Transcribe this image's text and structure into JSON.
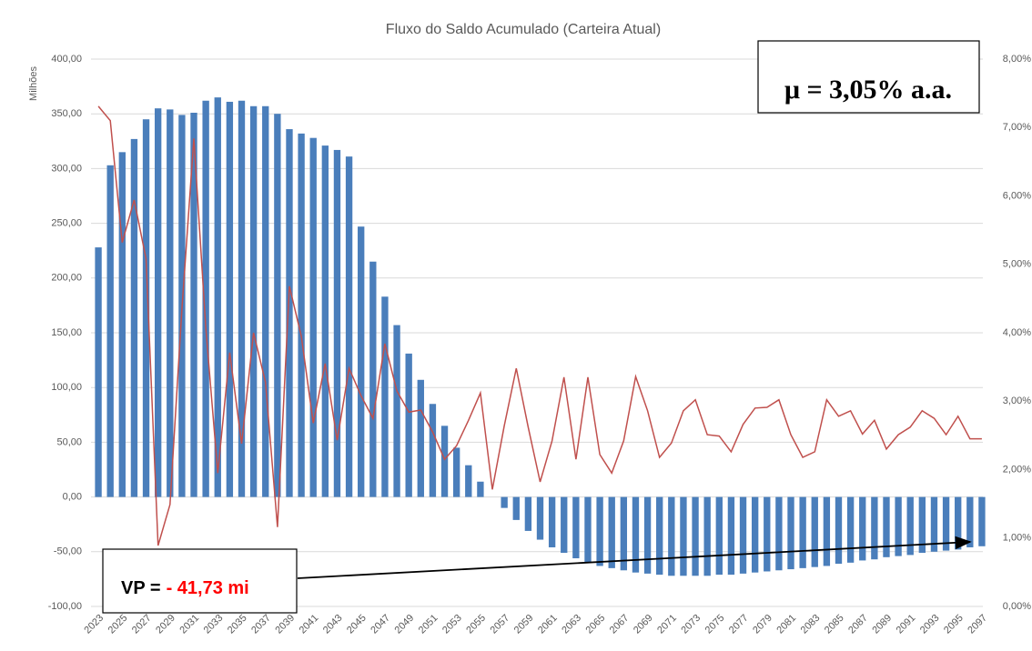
{
  "chart_data": {
    "type": "bar_line",
    "title": "Fluxo do Saldo Acumulado (Carteira Atual)",
    "y_label": "Milhões",
    "annotations": [
      "μ = 3,05% a.a.",
      "VP =",
      "- 41,73 mi"
    ],
    "categories": [
      "2023",
      null,
      "2025",
      null,
      "2027",
      null,
      "2029",
      null,
      "2031",
      null,
      "2033",
      null,
      "2035",
      null,
      "2037",
      null,
      "2039",
      null,
      "2041",
      null,
      "2043",
      null,
      "2045",
      null,
      "2047",
      null,
      "2049",
      null,
      "2051",
      null,
      "2053",
      null,
      "2055",
      null,
      "2057",
      null,
      "2059",
      null,
      "2061",
      null,
      "2063",
      null,
      "2065",
      null,
      "2067",
      null,
      "2069",
      null,
      "2071",
      null,
      "2073",
      null,
      "2075",
      null,
      "2077",
      null,
      "2079",
      null,
      "2081",
      null,
      "2083",
      null,
      "2085",
      null,
      "2087",
      null,
      "2089",
      null,
      "2091",
      null,
      "2093",
      null,
      "2095",
      null,
      "2097"
    ],
    "series": [
      {
        "type": "bar",
        "color": "#4a7ebb",
        "values": [
          228,
          303,
          315,
          327,
          345,
          355,
          354,
          349,
          351,
          362,
          365,
          361,
          362,
          357,
          357,
          350,
          336,
          332,
          328,
          321,
          317,
          311,
          247,
          215,
          183,
          157,
          131,
          107,
          85,
          65,
          45,
          29,
          14,
          0,
          -10,
          -21,
          -31,
          -39,
          -46,
          -51,
          -56,
          -60,
          -63,
          -65,
          -67,
          -69,
          -70,
          -71,
          -72,
          -72,
          -72,
          -72,
          -71,
          -71,
          -70,
          -69,
          -68,
          -67,
          -66,
          -65,
          -64,
          -63,
          -61,
          -60,
          -58,
          -57,
          -55,
          -54,
          -53,
          -51,
          -50,
          -49,
          -48,
          -46,
          -45
        ]
      },
      {
        "type": "line",
        "axis": "y2",
        "color": "#c0504d",
        "values": [
          7.31,
          7.1,
          5.32,
          5.94,
          5.08,
          0.89,
          1.49,
          4.35,
          6.84,
          4.08,
          1.95,
          3.71,
          2.38,
          4.0,
          3.28,
          1.16,
          4.68,
          3.95,
          2.68,
          3.55,
          2.43,
          3.48,
          3.08,
          2.75,
          3.84,
          3.15,
          2.84,
          2.87,
          2.55,
          2.15,
          2.35,
          2.72,
          3.12,
          1.71,
          2.64,
          3.48,
          2.62,
          1.82,
          2.42,
          3.35,
          2.15,
          3.35,
          2.22,
          1.95,
          2.42,
          3.36,
          2.86,
          2.18,
          2.39,
          2.86,
          3.02,
          2.51,
          2.49,
          2.26,
          2.66,
          2.9,
          2.91,
          3.02,
          2.51,
          2.18,
          2.26,
          3.02,
          2.78,
          2.86,
          2.52,
          2.72,
          2.3,
          2.51,
          2.62,
          2.86,
          2.75,
          2.51,
          2.78,
          2.45,
          2.45
        ]
      }
    ],
    "ylim": [
      -100,
      400
    ],
    "yticks": [
      {
        "value": -100,
        "label": "-100,00"
      },
      {
        "value": -50,
        "label": "-50,00"
      },
      {
        "value": 0,
        "label": "0,00"
      },
      {
        "value": 50,
        "label": "50,00"
      },
      {
        "value": 100,
        "label": "100,00"
      },
      {
        "value": 150,
        "label": "150,00"
      },
      {
        "value": 200,
        "label": "200,00"
      },
      {
        "value": 250,
        "label": "250,00"
      },
      {
        "value": 300,
        "label": "300,00"
      },
      {
        "value": 350,
        "label": "350,00"
      },
      {
        "value": 400,
        "label": "400,00"
      }
    ],
    "y2lim": [
      0,
      8
    ],
    "y2ticks": [
      {
        "value": 0,
        "label": "0,00%"
      },
      {
        "value": 1,
        "label": "1,00%"
      },
      {
        "value": 2,
        "label": "2,00%"
      },
      {
        "value": 3,
        "label": "3,00%"
      },
      {
        "value": 4,
        "label": "4,00%"
      },
      {
        "value": 5,
        "label": "5,00%"
      },
      {
        "value": 6,
        "label": "6,00%"
      },
      {
        "value": 7,
        "label": "7,00%"
      },
      {
        "value": 8,
        "label": "8,00%"
      }
    ],
    "grid": true
  }
}
